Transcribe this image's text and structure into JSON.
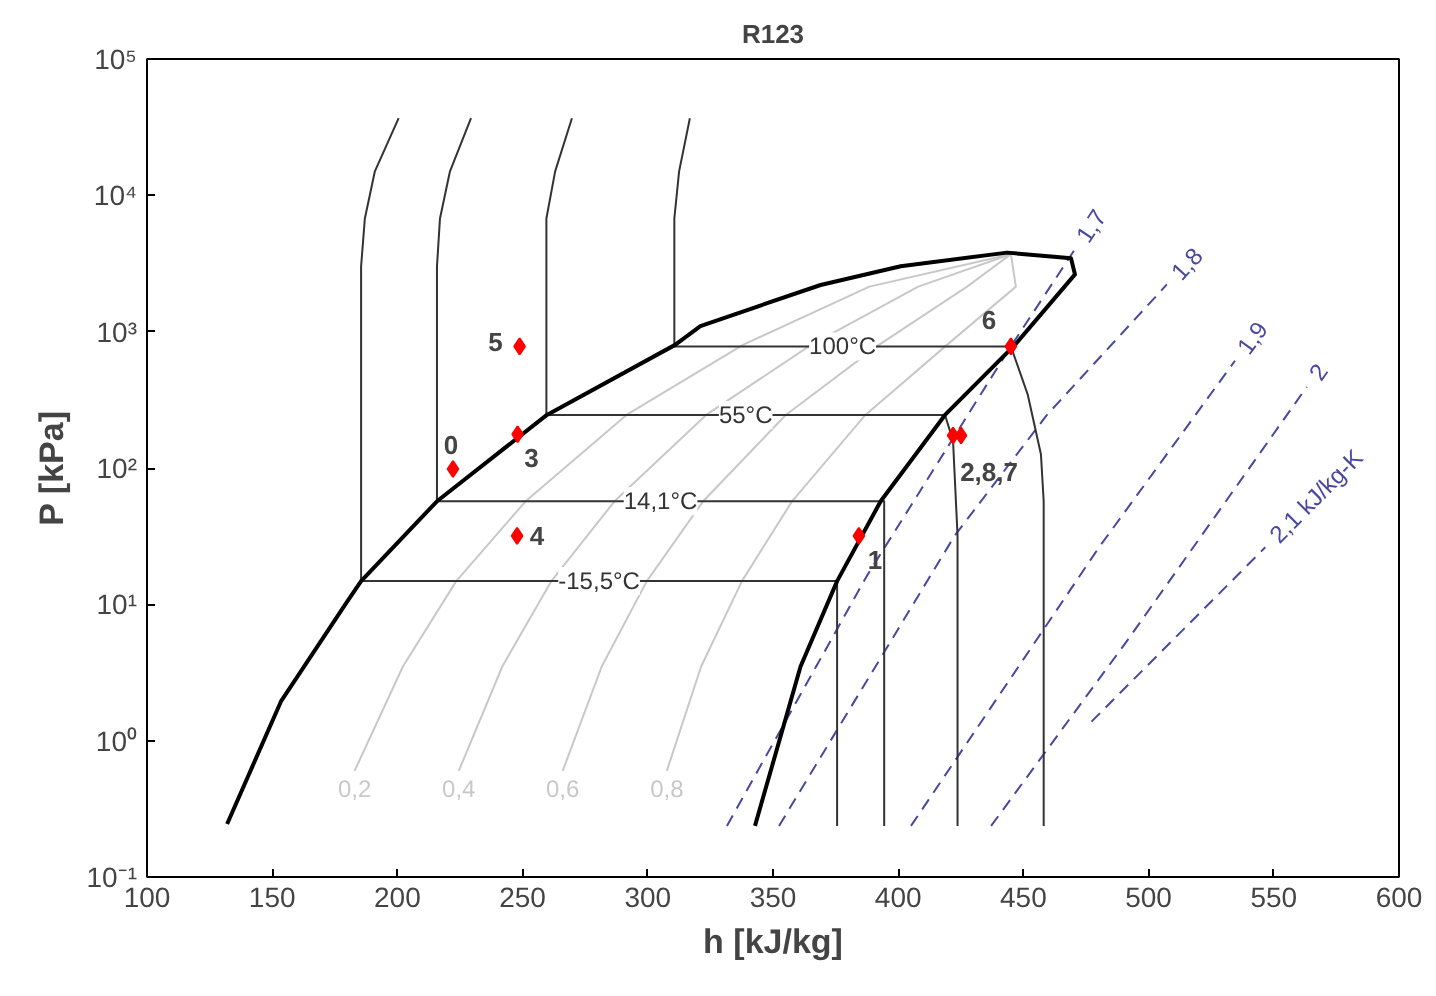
{
  "chart_data": {
    "type": "line",
    "title": "R123",
    "xlabel": "h [kJ/kg]",
    "ylabel": "P [kPa]",
    "xlim": [
      100,
      600
    ],
    "xticks": [
      100,
      150,
      200,
      250,
      300,
      350,
      400,
      450,
      500,
      550,
      600
    ],
    "ylim": [
      0.1,
      100000
    ],
    "log": "y",
    "yticks": [
      {
        "value": 0.1,
        "label": "10⁻¹"
      },
      {
        "value": 1,
        "label": "10⁰"
      },
      {
        "value": 10,
        "label": "10¹"
      },
      {
        "value": 100,
        "label": "10²"
      },
      {
        "value": 1000,
        "label": "10³"
      },
      {
        "value": 10000,
        "label": "10⁴"
      },
      {
        "value": 100000,
        "label": "10⁵"
      }
    ],
    "grid": false,
    "series": [
      {
        "color": "#c8c8c8",
        "name": "0,2",
        "x": [
          182.9,
          202.2,
          223.5,
          251.2,
          291.5,
          338.0,
          388.5,
          445
        ],
        "values": [
          0.6,
          3.5,
          14.8,
          57,
          245,
          800,
          2140,
          3700
        ]
      },
      {
        "color": "#c8c8c8",
        "name": "0,4",
        "x": [
          224.5,
          241.9,
          261.5,
          286.7,
          323.3,
          365.2,
          408,
          445
        ],
        "values": [
          0.6,
          3.5,
          14.8,
          57,
          245,
          800,
          2140,
          3700
        ]
      },
      {
        "color": "#c8c8c8",
        "name": "0,6",
        "x": [
          266.0,
          281.6,
          299.6,
          322.1,
          355.1,
          392.3,
          427.5,
          445
        ],
        "values": [
          0.6,
          3.5,
          14.8,
          57,
          245,
          800,
          2140,
          3700
        ]
      },
      {
        "color": "#c8c8c8",
        "name": "0,8",
        "x": [
          307.6,
          321.3,
          337.6,
          357.6,
          386.9,
          419.5,
          447,
          445
        ],
        "values": [
          0.6,
          3.5,
          14.8,
          57,
          245,
          800,
          2140,
          3700
        ]
      },
      {
        "color": "#4848a0",
        "name": "1,7",
        "line_style": "dashed",
        "x": [
          331.6,
          387.6,
          444.9,
          470.5
        ],
        "values": [
          0.237,
          16.3,
          776,
          4000
        ]
      },
      {
        "color": "#4848a0",
        "name": "1,8",
        "line_style": "dashed",
        "x": [
          352.4,
          422.6,
          459.4,
          507.3
        ],
        "values": [
          0.237,
          32,
          245,
          2220
        ]
      },
      {
        "color": "#4848a0",
        "name": "1,9",
        "line_style": "dashed",
        "x": [
          405.1,
          480.2,
          534.5
        ],
        "values": [
          0.237,
          26.2,
          612
        ]
      },
      {
        "color": "#4848a0",
        "name": "2",
        "line_style": "dashed",
        "x": [
          437.1,
          491.4,
          563.2
        ],
        "values": [
          0.237,
          5.4,
          394
        ]
      },
      {
        "color": "#4848a0",
        "name": "2,1 kJ/kg-K",
        "line_style": "dashed",
        "x": [
          477.2,
          546.6
        ],
        "values": [
          1.38,
          26.2
        ]
      },
      {
        "color": "#333333",
        "name": "-15,5°C",
        "x": [
          200.5,
          191,
          187,
          185.5,
          185.5,
          375.6,
          375.6
        ],
        "values": [
          36800,
          15000,
          6760,
          3000,
          14.8,
          14.8,
          0.237
        ]
      },
      {
        "color": "#333333",
        "name": "14,1°C",
        "x": [
          229.4,
          221,
          217,
          215.8,
          215.8,
          394.4,
          394.4
        ],
        "values": [
          36800,
          15000,
          6760,
          3000,
          57,
          57,
          0.237
        ]
      },
      {
        "color": "#333333",
        "name": "55°C",
        "x": [
          269.7,
          263,
          259.5,
          259.5,
          418.7,
          421.9,
          423.7,
          423.7
        ],
        "values": [
          36800,
          15000,
          6760,
          245,
          245,
          158,
          32,
          0.237
        ]
      },
      {
        "color": "#333333",
        "name": "100°C",
        "x": [
          316.8,
          312.5,
          310.6,
          310.6,
          445,
          451.7,
          457,
          458.1,
          458.1
        ],
        "values": [
          36800,
          15000,
          6760,
          780,
          780,
          347,
          126,
          57,
          0.237
        ]
      },
      {
        "color": "#000000",
        "x": [
          132,
          153.5,
          180,
          185.5,
          215.8,
          259.7,
          310.9,
          321,
          369,
          401,
          443.5,
          469,
          470.6,
          446.6,
          418.7,
          393,
          375.6,
          361,
          342.8
        ],
        "values": [
          0.245,
          1.94,
          10.5,
          14.8,
          57,
          245,
          800,
          1100,
          2200,
          3020,
          3800,
          3460,
          2630,
          800,
          245,
          57,
          14.8,
          3.5,
          0.237
        ]
      },
      {
        "type": "scatter",
        "marker": "diamond",
        "color": "#ff0000",
        "x": [
          222.2,
          248.8,
          248.0,
          247.8,
          384.3,
          445,
          421.9,
          425.1
        ],
        "values": [
          98.4,
          780,
          177,
          31.8,
          31.8,
          780,
          173,
          173
        ]
      }
    ],
    "annotations": [
      {
        "text": "0",
        "x": 222.2,
        "y": 98.4
      },
      {
        "text": "5",
        "x": 248.8,
        "y": 780
      },
      {
        "text": "3",
        "x": 248.0,
        "y": 177
      },
      {
        "text": "4",
        "x": 247.8,
        "y": 31.8
      },
      {
        "text": "1",
        "x": 384.3,
        "y": 31.8
      },
      {
        "text": "6",
        "x": 445,
        "y": 780
      },
      {
        "text": "2,8,7",
        "x": 423.5,
        "y": 173
      }
    ]
  }
}
